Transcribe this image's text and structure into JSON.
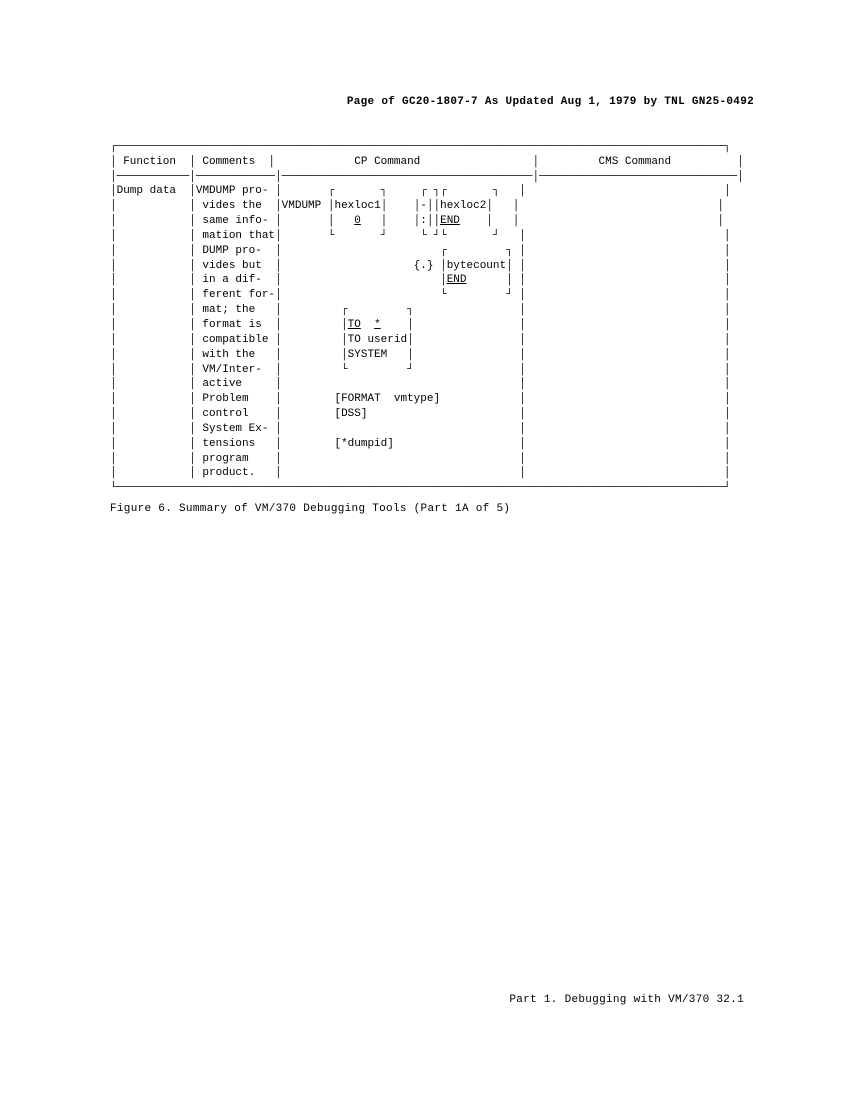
{
  "page_header": "Page of GC20-1807-7 As Updated Aug 1, 1979 by TNL GN25-0492",
  "table": {
    "headers": {
      "c1": "Function",
      "c2": "Comments",
      "c3": "CP Command",
      "c4": "CMS Command"
    },
    "col1": "Dump data",
    "col2": [
      "VMDUMP pro-",
      "vides the",
      "same info-",
      "mation that",
      "DUMP pro-",
      "vides but",
      "in a dif-",
      "ferent for-",
      "mat; the",
      "format is",
      "compatible",
      "with the",
      "VM/Inter-",
      "active",
      "Problem",
      "control",
      "System Ex-",
      "tensions",
      "program",
      "product."
    ],
    "col3": {
      "cmd": "VMDUMP",
      "hex1": "hexloc1",
      "zero": "0",
      "hex2": "hexloc2",
      "end1": "END",
      "byte": "bytecount",
      "end2": "END",
      "to": "TO",
      "star": "*",
      "userid": "TO userid",
      "system": "SYSTEM",
      "format": "[FORMAT  vmtype]",
      "dss": "[DSS]",
      "dumpid": "[*dumpid]"
    }
  },
  "figure_caption": "Figure 6.  Summary of VM/370 Debugging Tools (Part 1A of 5)",
  "footer": "Part 1. Debugging with VM/370  32.1",
  "styles": {
    "font_family": "Courier New",
    "font_size_pt": 9,
    "text_color": "#000000",
    "background_color": "#ffffff"
  }
}
